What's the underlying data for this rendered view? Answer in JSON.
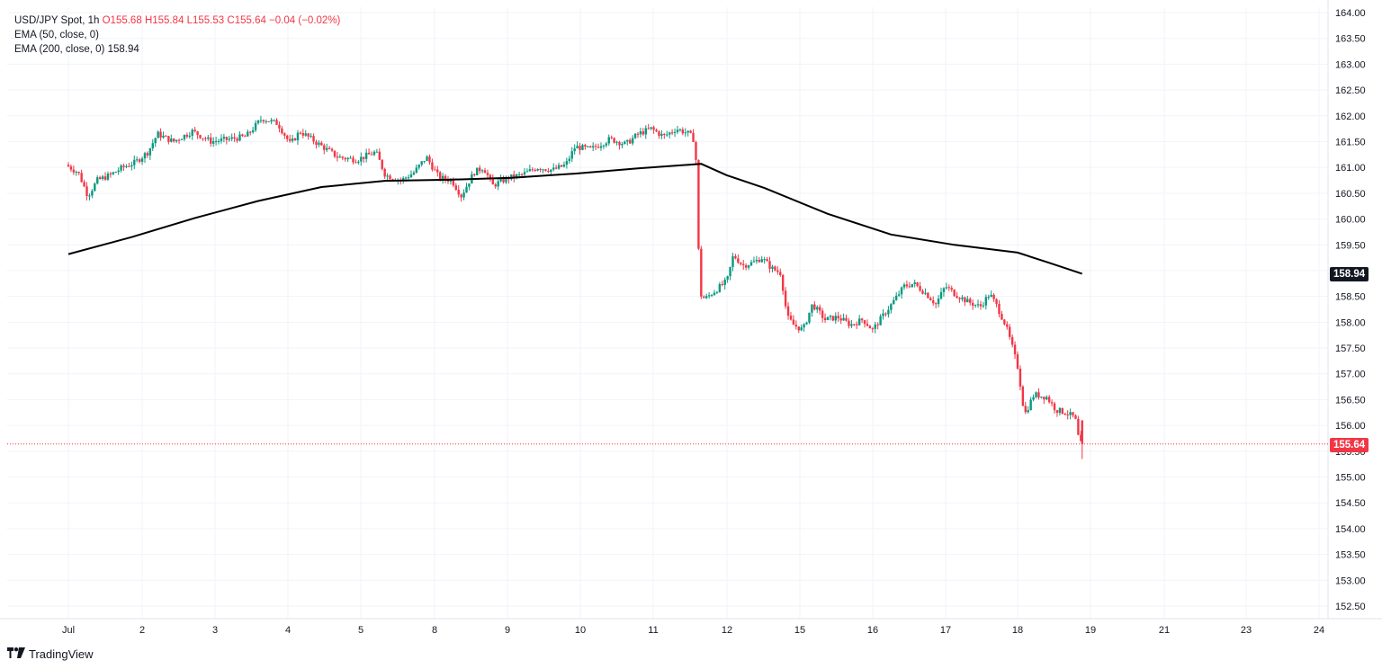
{
  "legend": {
    "symbol": "USD/JPY Spot, 1h",
    "open": "O155.68",
    "high": "H155.84",
    "low": "L155.53",
    "close": "C155.64",
    "change": "−0.04 (−0.02%)",
    "ema50_label": "EMA (50, close, 0)",
    "ema200_label": "EMA (200, close, 0)",
    "ema200_value": "158.94"
  },
  "price_tags": {
    "ema200": "158.94",
    "last": "155.64"
  },
  "branding": {
    "logo_text": "TradingView"
  },
  "colors": {
    "up": "#089981",
    "down": "#f23645",
    "ema": "#000000",
    "grid": "#f0f3fa",
    "axis_text": "#131722"
  },
  "chart_data": {
    "type": "candlestick",
    "title": "USD/JPY Spot, 1h",
    "y_ticks": [
      "164.00",
      "163.50",
      "163.00",
      "162.50",
      "162.00",
      "161.50",
      "161.00",
      "160.50",
      "160.00",
      "159.50",
      "159.00",
      "158.50",
      "158.00",
      "157.50",
      "157.00",
      "156.50",
      "156.00",
      "155.50",
      "155.00",
      "154.50",
      "154.00",
      "153.50",
      "153.00",
      "152.50"
    ],
    "ylim": [
      152.3,
      164.1
    ],
    "x_ticks": [
      {
        "label": "Jul",
        "day": 1
      },
      {
        "label": "2",
        "day": 2
      },
      {
        "label": "3",
        "day": 3
      },
      {
        "label": "4",
        "day": 4
      },
      {
        "label": "5",
        "day": 5
      },
      {
        "label": "8",
        "day": 8
      },
      {
        "label": "9",
        "day": 9
      },
      {
        "label": "10",
        "day": 10
      },
      {
        "label": "11",
        "day": 11
      },
      {
        "label": "12",
        "day": 12
      },
      {
        "label": "15",
        "day": 15
      },
      {
        "label": "16",
        "day": 16
      },
      {
        "label": "17",
        "day": 17
      },
      {
        "label": "18",
        "day": 18
      },
      {
        "label": "19",
        "day": 19
      },
      {
        "label": "21",
        "day": 21
      },
      {
        "label": "23",
        "day": 23
      },
      {
        "label": "24",
        "day": 24
      }
    ],
    "close_path": [
      {
        "t": 0.0,
        "p": 161.05
      },
      {
        "t": 0.2,
        "p": 160.9
      },
      {
        "t": 0.35,
        "p": 160.45
      },
      {
        "t": 0.5,
        "p": 160.75
      },
      {
        "t": 0.7,
        "p": 160.85
      },
      {
        "t": 0.9,
        "p": 161.0
      },
      {
        "t": 1.1,
        "p": 161.1
      },
      {
        "t": 1.3,
        "p": 161.3
      },
      {
        "t": 1.45,
        "p": 161.65
      },
      {
        "t": 1.7,
        "p": 161.5
      },
      {
        "t": 2.0,
        "p": 161.7
      },
      {
        "t": 2.3,
        "p": 161.5
      },
      {
        "t": 2.6,
        "p": 161.55
      },
      {
        "t": 2.85,
        "p": 161.6
      },
      {
        "t": 3.1,
        "p": 161.95
      },
      {
        "t": 3.35,
        "p": 161.85
      },
      {
        "t": 3.55,
        "p": 161.45
      },
      {
        "t": 3.7,
        "p": 161.7
      },
      {
        "t": 4.0,
        "p": 161.45
      },
      {
        "t": 4.3,
        "p": 161.2
      },
      {
        "t": 4.6,
        "p": 161.15
      },
      {
        "t": 4.9,
        "p": 161.3
      },
      {
        "t": 5.05,
        "p": 160.85
      },
      {
        "t": 5.3,
        "p": 160.75
      },
      {
        "t": 5.5,
        "p": 160.9
      },
      {
        "t": 5.7,
        "p": 161.2
      },
      {
        "t": 5.9,
        "p": 160.8
      },
      {
        "t": 6.1,
        "p": 160.75
      },
      {
        "t": 6.25,
        "p": 160.45
      },
      {
        "t": 6.45,
        "p": 160.9
      },
      {
        "t": 6.6,
        "p": 161.0
      },
      {
        "t": 6.75,
        "p": 160.65
      },
      {
        "t": 7.0,
        "p": 160.8
      },
      {
        "t": 7.2,
        "p": 160.85
      },
      {
        "t": 7.45,
        "p": 161.0
      },
      {
        "t": 7.7,
        "p": 160.95
      },
      {
        "t": 7.9,
        "p": 161.05
      },
      {
        "t": 8.05,
        "p": 161.4
      },
      {
        "t": 8.3,
        "p": 161.35
      },
      {
        "t": 8.6,
        "p": 161.55
      },
      {
        "t": 8.85,
        "p": 161.45
      },
      {
        "t": 9.05,
        "p": 161.65
      },
      {
        "t": 9.25,
        "p": 161.75
      },
      {
        "t": 9.45,
        "p": 161.6
      },
      {
        "t": 9.65,
        "p": 161.75
      },
      {
        "t": 9.85,
        "p": 161.65
      },
      {
        "t": 9.95,
        "p": 161.5
      },
      {
        "t": 10.02,
        "p": 158.55
      },
      {
        "t": 10.1,
        "p": 158.45
      },
      {
        "t": 10.3,
        "p": 158.65
      },
      {
        "t": 10.45,
        "p": 158.8
      },
      {
        "t": 10.55,
        "p": 159.3
      },
      {
        "t": 10.7,
        "p": 159.1
      },
      {
        "t": 10.85,
        "p": 159.15
      },
      {
        "t": 11.0,
        "p": 159.25
      },
      {
        "t": 11.15,
        "p": 159.05
      },
      {
        "t": 11.3,
        "p": 158.95
      },
      {
        "t": 11.4,
        "p": 158.1
      },
      {
        "t": 11.5,
        "p": 157.95
      },
      {
        "t": 11.65,
        "p": 157.85
      },
      {
        "t": 11.8,
        "p": 158.35
      },
      {
        "t": 12.0,
        "p": 158.05
      },
      {
        "t": 12.2,
        "p": 158.1
      },
      {
        "t": 12.4,
        "p": 157.95
      },
      {
        "t": 12.6,
        "p": 158.05
      },
      {
        "t": 12.75,
        "p": 157.85
      },
      {
        "t": 12.9,
        "p": 158.1
      },
      {
        "t": 13.05,
        "p": 158.35
      },
      {
        "t": 13.25,
        "p": 158.7
      },
      {
        "t": 13.4,
        "p": 158.75
      },
      {
        "t": 13.6,
        "p": 158.55
      },
      {
        "t": 13.75,
        "p": 158.35
      },
      {
        "t": 13.9,
        "p": 158.7
      },
      {
        "t": 14.05,
        "p": 158.55
      },
      {
        "t": 14.25,
        "p": 158.4
      },
      {
        "t": 14.45,
        "p": 158.3
      },
      {
        "t": 14.6,
        "p": 158.55
      },
      {
        "t": 14.72,
        "p": 158.3
      },
      {
        "t": 14.85,
        "p": 157.95
      },
      {
        "t": 14.95,
        "p": 157.55
      },
      {
        "t": 15.05,
        "p": 157.1
      },
      {
        "t": 15.15,
        "p": 156.2
      },
      {
        "t": 15.3,
        "p": 156.6
      },
      {
        "t": 15.5,
        "p": 156.55
      },
      {
        "t": 15.65,
        "p": 156.3
      },
      {
        "t": 15.8,
        "p": 156.25
      },
      {
        "t": 15.95,
        "p": 156.15
      },
      {
        "t": 16.02,
        "p": 155.64
      }
    ],
    "last_close": 155.64,
    "ema200": [
      {
        "t": 0.0,
        "p": 159.32
      },
      {
        "t": 1.0,
        "p": 159.65
      },
      {
        "t": 2.0,
        "p": 160.02
      },
      {
        "t": 3.0,
        "p": 160.35
      },
      {
        "t": 4.0,
        "p": 160.62
      },
      {
        "t": 5.0,
        "p": 160.74
      },
      {
        "t": 6.0,
        "p": 160.76
      },
      {
        "t": 7.0,
        "p": 160.8
      },
      {
        "t": 8.0,
        "p": 160.88
      },
      {
        "t": 9.0,
        "p": 160.98
      },
      {
        "t": 10.0,
        "p": 161.07
      },
      {
        "t": 10.4,
        "p": 160.85
      },
      {
        "t": 11.0,
        "p": 160.6
      },
      {
        "t": 12.0,
        "p": 160.1
      },
      {
        "t": 13.0,
        "p": 159.7
      },
      {
        "t": 14.0,
        "p": 159.5
      },
      {
        "t": 15.0,
        "p": 159.35
      },
      {
        "t": 15.5,
        "p": 159.15
      },
      {
        "t": 16.02,
        "p": 158.94
      }
    ],
    "ema200_last": 158.94
  }
}
